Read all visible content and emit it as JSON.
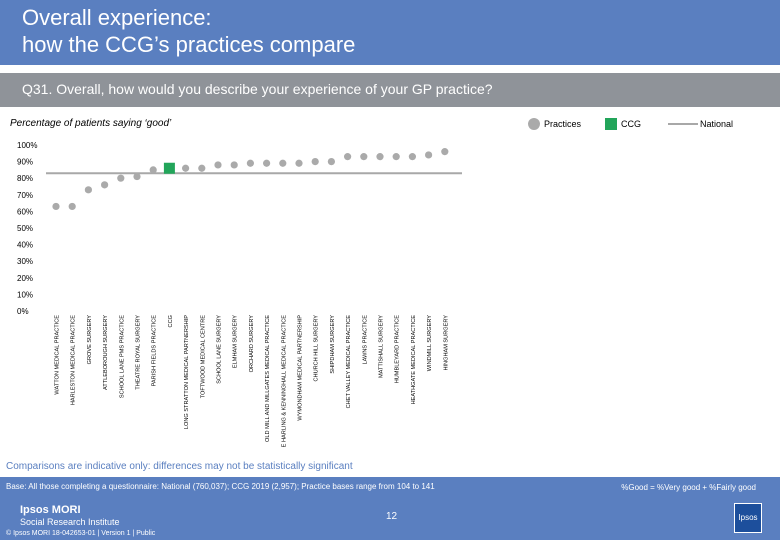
{
  "header": {
    "title_line1": "Overall experience:",
    "title_line2": "how the CCG’s practices compare"
  },
  "question": "Q31. Overall, how would you describe your experience of your GP practice?",
  "subtitle": "Percentage of patients saying ‘good’",
  "legend": {
    "practices": "Practices",
    "ccg": "CCG",
    "national": "National"
  },
  "colors": {
    "header": "#5a7fc0",
    "practice": "#aaaaaa",
    "ccg": "#22a55a",
    "national": "#a8a8a8",
    "band": "#8f9399"
  },
  "chart_data": {
    "type": "scatter",
    "title": "Percentage of patients saying ‘good’",
    "ylim": [
      0,
      100
    ],
    "yticks": [
      "0%",
      "10%",
      "20%",
      "30%",
      "40%",
      "50%",
      "60%",
      "70%",
      "80%",
      "90%",
      "100%"
    ],
    "national": 83,
    "categories": [
      "WATTON MEDICAL PRACTICE",
      "HARLESTON MEDICAL PRACTICE",
      "GROVE SURGERY",
      "ATTLEBOROUGH SURGERY",
      "SCHOOL LANE PMS PRACTICE",
      "THEATRE ROYAL SURGERY",
      "PARISH FIELDS PRACTICE",
      "CCG",
      "LONG STRATTON MEDICAL PARTNERSHIP",
      "TOFTWOOD MEDICAL CENTRE",
      "SCHOOL LANE SURGERY",
      "ELMHAM SURGERY",
      "ORCHARD SURGERY",
      "OLD MILL AND MILLGATES MEDICAL PRACTICE",
      "E HARLING & KENNINGHALL MEDICAL PRACTICE",
      "WYMONDHAM MEDICAL PARTNERSHIP",
      "CHURCH HILL SURGERY",
      "SHIPDHAM SURGERY",
      "CHET VALLEY MEDICAL PRACTICE",
      "LAWNS PRACTICE",
      "MATTISHALL SURGERY",
      "HUMBLEYARD PRACTICE",
      "HEATHGATE MEDICAL PRACTICE",
      "WINDMILL SURGERY",
      "HINGHAM SURGERY"
    ],
    "values": [
      63,
      63,
      73,
      76,
      80,
      81,
      85,
      86,
      86,
      86,
      88,
      88,
      89,
      89,
      89,
      89,
      90,
      90,
      93,
      93,
      93,
      93,
      93,
      94,
      96
    ],
    "kinds": [
      "practice",
      "practice",
      "practice",
      "practice",
      "practice",
      "practice",
      "practice",
      "ccg",
      "practice",
      "practice",
      "practice",
      "practice",
      "practice",
      "practice",
      "practice",
      "practice",
      "practice",
      "practice",
      "practice",
      "practice",
      "practice",
      "practice",
      "practice",
      "practice",
      "practice"
    ]
  },
  "note": "Comparisons are indicative only: differences may not be statistically significant",
  "footer": {
    "base": "Base: All those completing a questionnaire: National (760,037); CCG 2019 (2,957); Practice bases range from 104 to 141",
    "definition": "%Good = %Very good + %Fairly good",
    "page": "12",
    "brand1": "Ipsos MORI",
    "brand2": "Social Research Institute",
    "copyright": "© Ipsos MORI     18-042653-01 | Version 1 | Public",
    "logo": "Ipsos"
  }
}
